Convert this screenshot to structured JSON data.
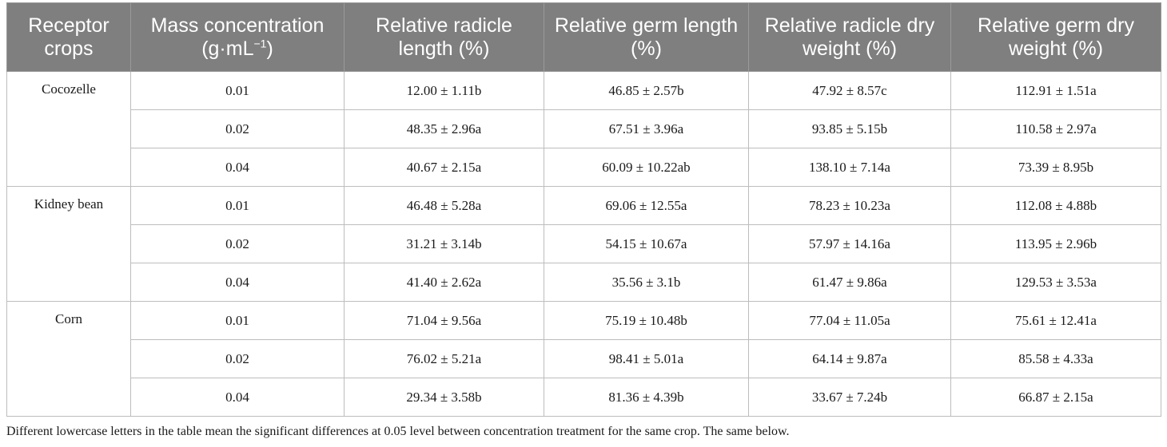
{
  "header": {
    "receptor": "Receptor crops",
    "mass_main": "Mass concentration",
    "mass_unit_base": "(g·mL",
    "mass_unit_sup": "−1",
    "mass_unit_close": ")",
    "radicle_length": "Relative radicle length (%)",
    "germ_length": "Relative germ length (%)",
    "radicle_dry": "Relative radicle dry weight (%)",
    "germ_dry": "Relative germ dry weight (%)"
  },
  "groups": [
    {
      "crop": "Cocozelle",
      "rows": [
        {
          "conc": "0.01",
          "radicle_length": "12.00 ± 1.11b",
          "germ_length": "46.85 ± 2.57b",
          "radicle_dry": "47.92 ± 8.57c",
          "germ_dry": "112.91 ± 1.51a"
        },
        {
          "conc": "0.02",
          "radicle_length": "48.35 ± 2.96a",
          "germ_length": "67.51 ± 3.96a",
          "radicle_dry": "93.85 ± 5.15b",
          "germ_dry": "110.58 ± 2.97a"
        },
        {
          "conc": "0.04",
          "radicle_length": "40.67 ± 2.15a",
          "germ_length": "60.09 ± 10.22ab",
          "radicle_dry": "138.10 ± 7.14a",
          "germ_dry": "73.39 ± 8.95b"
        }
      ]
    },
    {
      "crop": "Kidney bean",
      "rows": [
        {
          "conc": "0.01",
          "radicle_length": "46.48 ± 5.28a",
          "germ_length": "69.06 ± 12.55a",
          "radicle_dry": "78.23 ± 10.23a",
          "germ_dry": "112.08 ± 4.88b"
        },
        {
          "conc": "0.02",
          "radicle_length": "31.21 ± 3.14b",
          "germ_length": "54.15 ± 10.67a",
          "radicle_dry": "57.97 ± 14.16a",
          "germ_dry": "113.95 ± 2.96b"
        },
        {
          "conc": "0.04",
          "radicle_length": "41.40 ± 2.62a",
          "germ_length": "35.56 ± 3.1b",
          "radicle_dry": "61.47 ± 9.86a",
          "germ_dry": "129.53 ± 3.53a"
        }
      ]
    },
    {
      "crop": "Corn",
      "rows": [
        {
          "conc": "0.01",
          "radicle_length": "71.04 ± 9.56a",
          "germ_length": "75.19 ± 10.48b",
          "radicle_dry": "77.04 ± 11.05a",
          "germ_dry": "75.61 ± 12.41a"
        },
        {
          "conc": "0.02",
          "radicle_length": "76.02 ± 5.21a",
          "germ_length": "98.41 ± 5.01a",
          "radicle_dry": "64.14 ± 9.87a",
          "germ_dry": "85.58 ± 4.33a"
        },
        {
          "conc": "0.04",
          "radicle_length": "29.34 ± 3.58b",
          "germ_length": "81.36 ± 4.39b",
          "radicle_dry": "33.67 ± 7.24b",
          "germ_dry": "66.87 ± 2.15a"
        }
      ]
    }
  ],
  "footnote": "Different lowercase letters in the table mean the significant differences at 0.05 level between concentration treatment for the same crop. The same below."
}
